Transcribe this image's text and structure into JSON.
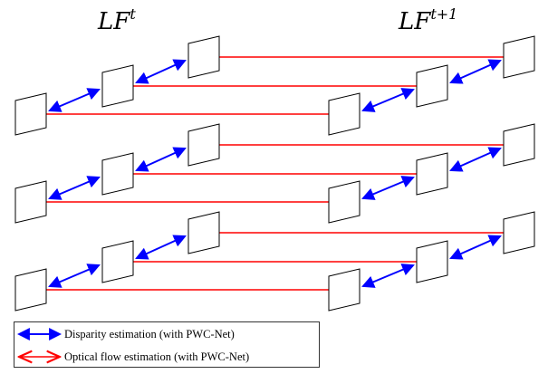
{
  "labels": {
    "left": {
      "base": "LF",
      "sup": "t"
    },
    "right": {
      "base": "LF",
      "sup": "t+1"
    }
  },
  "legend": {
    "disparity": "Disparity estimation (with PWC-Net)",
    "optical_flow": "Optical flow estimation (with PWC-Net)"
  },
  "colors": {
    "disparity": "#0000ff",
    "optical_flow": "#ff0000",
    "frame_stroke": "#000000"
  },
  "diagram": {
    "rows": 3,
    "frames_per_row_per_lightfield": 3,
    "lightfields": [
      "LF^t",
      "LF^(t+1)"
    ]
  }
}
